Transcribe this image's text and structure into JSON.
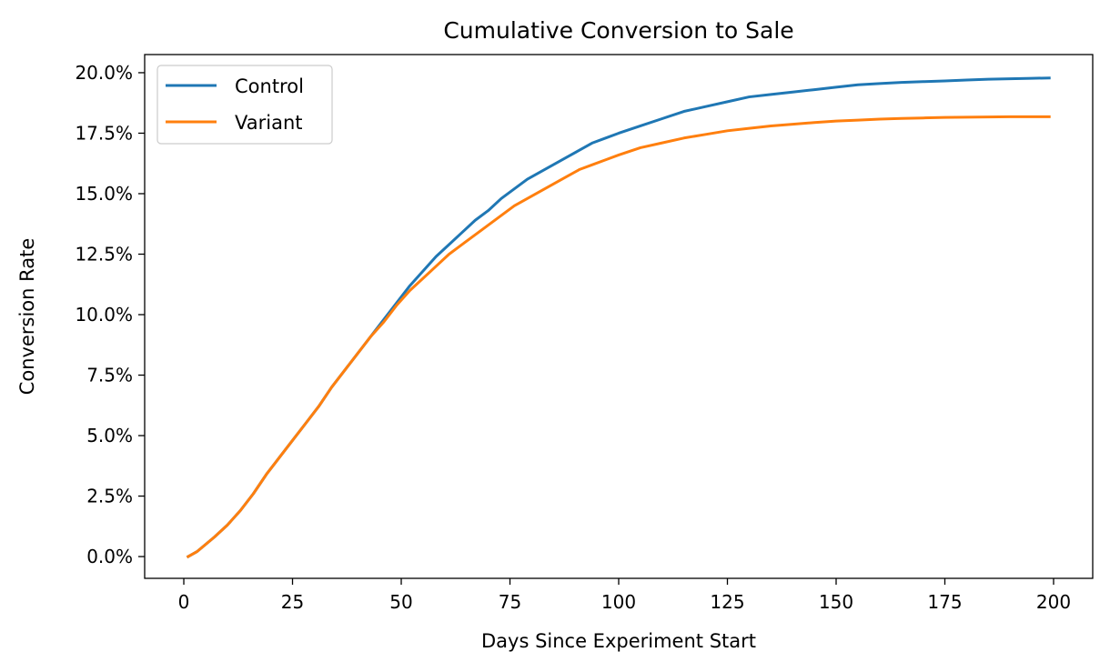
{
  "chart_data": {
    "type": "line",
    "title": "Cumulative Conversion to Sale",
    "xlabel": "Days Since Experiment Start",
    "ylabel": "Conversion Rate",
    "xlim": [
      -9,
      209
    ],
    "ylim": [
      -0.009,
      0.2075
    ],
    "xticks": [
      0,
      25,
      50,
      75,
      100,
      125,
      150,
      175,
      200
    ],
    "yticks": [
      0.0,
      0.025,
      0.05,
      0.075,
      0.1,
      0.125,
      0.15,
      0.175,
      0.2
    ],
    "ytick_format": "percent_1dp",
    "grid": false,
    "legend_position": "top-left",
    "x": [
      1,
      3,
      5,
      7,
      10,
      13,
      16,
      19,
      22,
      25,
      28,
      31,
      34,
      37,
      40,
      43,
      46,
      49,
      52,
      55,
      58,
      61,
      64,
      67,
      70,
      73,
      76,
      79,
      82,
      85,
      88,
      91,
      94,
      97,
      100,
      105,
      110,
      115,
      120,
      125,
      130,
      135,
      140,
      145,
      150,
      155,
      160,
      165,
      170,
      175,
      180,
      185,
      190,
      195,
      199
    ],
    "series": [
      {
        "name": "Control",
        "color": "#1f77b4",
        "values": [
          0.0,
          0.002,
          0.005,
          0.008,
          0.013,
          0.019,
          0.026,
          0.034,
          0.041,
          0.048,
          0.055,
          0.062,
          0.07,
          0.077,
          0.084,
          0.091,
          0.098,
          0.105,
          0.112,
          0.118,
          0.124,
          0.129,
          0.134,
          0.139,
          0.143,
          0.148,
          0.152,
          0.156,
          0.159,
          0.162,
          0.165,
          0.168,
          0.171,
          0.173,
          0.175,
          0.178,
          0.181,
          0.184,
          0.186,
          0.188,
          0.19,
          0.191,
          0.192,
          0.193,
          0.194,
          0.195,
          0.1955,
          0.196,
          0.1963,
          0.1966,
          0.197,
          0.1973,
          0.1975,
          0.1977,
          0.1978
        ]
      },
      {
        "name": "Variant",
        "color": "#ff7f0e",
        "values": [
          0.0,
          0.002,
          0.005,
          0.008,
          0.013,
          0.019,
          0.026,
          0.034,
          0.041,
          0.048,
          0.055,
          0.062,
          0.07,
          0.077,
          0.084,
          0.091,
          0.097,
          0.104,
          0.11,
          0.115,
          0.12,
          0.125,
          0.129,
          0.133,
          0.137,
          0.141,
          0.145,
          0.148,
          0.151,
          0.154,
          0.157,
          0.16,
          0.162,
          0.164,
          0.166,
          0.169,
          0.171,
          0.173,
          0.1745,
          0.176,
          0.177,
          0.178,
          0.1787,
          0.1794,
          0.18,
          0.1804,
          0.1808,
          0.1811,
          0.1813,
          0.1815,
          0.1816,
          0.1817,
          0.1818,
          0.1818,
          0.1818
        ]
      }
    ]
  }
}
